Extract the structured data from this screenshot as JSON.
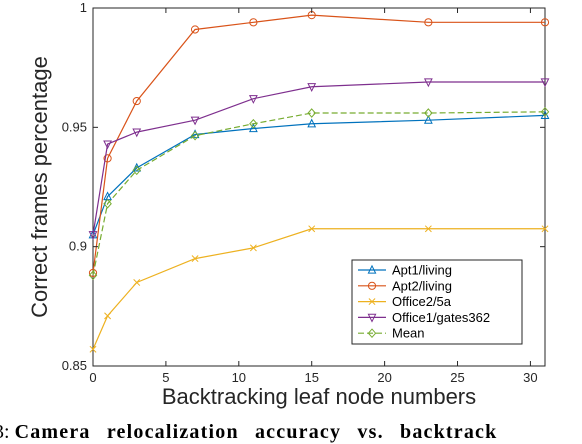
{
  "chart_data": {
    "type": "line",
    "title": "",
    "xlabel": "Backtracking leaf node numbers",
    "ylabel": "Correct frames percentage",
    "xlim": [
      0,
      31
    ],
    "ylim": [
      0.85,
      1.0
    ],
    "xticks": [
      0,
      5,
      10,
      15,
      20,
      25,
      30
    ],
    "yticks": [
      0.85,
      0.9,
      0.95,
      1
    ],
    "ytick_labels": [
      "0.85",
      "0.9",
      "0.95",
      "1"
    ],
    "grid": false,
    "legend_position": "bottom-right",
    "series": [
      {
        "name": "Apt1/living",
        "color": "#0072BD",
        "marker": "triangle-up",
        "dash": "solid",
        "x": [
          0,
          1,
          3,
          7,
          11,
          15,
          23,
          31
        ],
        "y": [
          0.905,
          0.921,
          0.933,
          0.947,
          0.9495,
          0.9515,
          0.953,
          0.955
        ]
      },
      {
        "name": "Apt2/living",
        "color": "#D95319",
        "marker": "circle",
        "dash": "solid",
        "x": [
          0,
          1,
          3,
          7,
          11,
          15,
          23,
          31
        ],
        "y": [
          0.889,
          0.937,
          0.961,
          0.991,
          0.994,
          0.997,
          0.994,
          0.994
        ]
      },
      {
        "name": "Office2/5a",
        "color": "#EDB120",
        "marker": "x",
        "dash": "solid",
        "x": [
          0,
          1,
          3,
          7,
          11,
          15,
          23,
          31
        ],
        "y": [
          0.857,
          0.871,
          0.885,
          0.895,
          0.8995,
          0.9075,
          0.9075,
          0.9075
        ]
      },
      {
        "name": "Office1/gates362",
        "color": "#7E2F8E",
        "marker": "triangle-down",
        "dash": "solid",
        "x": [
          0,
          1,
          3,
          7,
          11,
          15,
          23,
          31
        ],
        "y": [
          0.905,
          0.943,
          0.948,
          0.953,
          0.962,
          0.967,
          0.969,
          0.969
        ]
      },
      {
        "name": "Mean",
        "color": "#77AC30",
        "marker": "diamond",
        "dash": "dashed",
        "x": [
          0,
          1,
          3,
          7,
          11,
          15,
          23,
          31
        ],
        "y": [
          0.888,
          0.918,
          0.932,
          0.9465,
          0.9515,
          0.956,
          0.956,
          0.9565
        ]
      }
    ]
  },
  "caption": {
    "number": "3:",
    "text": "Camera relocalization accuracy vs. backtrack"
  }
}
